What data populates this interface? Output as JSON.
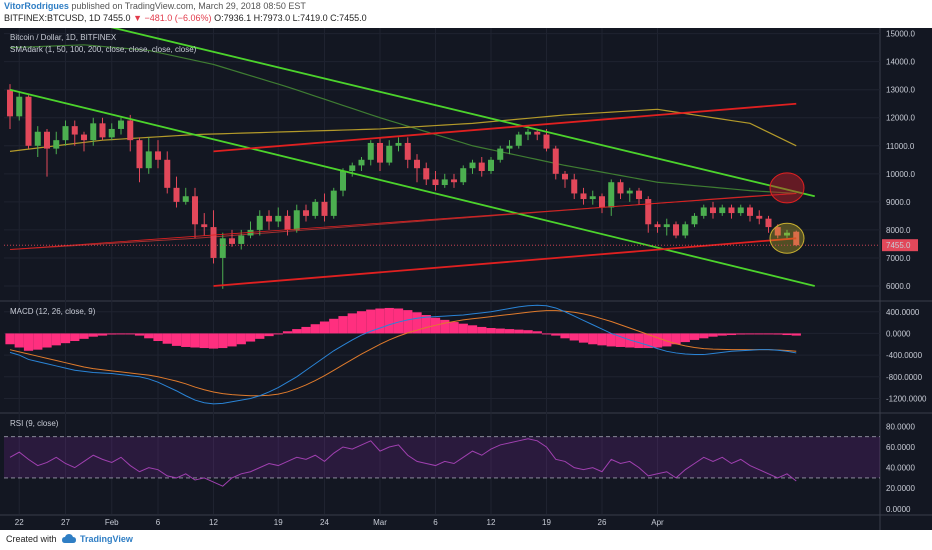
{
  "header": {
    "author": "VitorRodrigues",
    "published": "published on TradingView.com, March 29, 2018 08:50 EST",
    "symbol": "BITFINEX:BTCUSD, 1D",
    "last": "7455.0",
    "change": "▼ −481.0 (−6.06%)",
    "ohlc": "O:7936.1 H:7973.0 L:7419.0 C:7455.0"
  },
  "footer": {
    "created": "Created with",
    "brand": "TradingView"
  },
  "colors": {
    "up": "#4caf50",
    "down": "#e2485a",
    "green_line": "#4cd32c",
    "red_line": "#e02020",
    "sma50": "#3f7d32",
    "sma100": "#b39a2a",
    "sma200": "#a23030",
    "macd_hist": "#ff2f7f",
    "macd_line": "#2a84d6",
    "signal_line": "#e07b2c",
    "rsi": "#a040b0"
  },
  "chart_data": [
    {
      "type": "candlestick",
      "pane_title": "Bitcoin / Dollar, 1D, BITFINEX",
      "indicator_label": "SMAdark (1, 50, 100, 200, close, close, close, close)",
      "x_labels": [
        "22",
        "27",
        "Feb",
        "6",
        "12",
        "19",
        "24",
        "Mar",
        "6",
        "12",
        "19",
        "26",
        "Apr"
      ],
      "y_ticks": [
        6000,
        7000,
        8000,
        9000,
        10000,
        11000,
        12000,
        13000,
        14000,
        15000
      ],
      "y_tick_labels": [
        "6000.0",
        "7000.0",
        "8000.0",
        "9000.0",
        "10000.0",
        "11000.0",
        "12000.0",
        "13000.0",
        "14000.0",
        "15000.0"
      ],
      "ylim": [
        5500,
        15200
      ],
      "last_price": 7455,
      "last_price_label": "7455.0",
      "candles": [
        {
          "o": 13000,
          "h": 13200,
          "c": 12050,
          "l": 11600
        },
        {
          "o": 12050,
          "h": 12900,
          "c": 12750,
          "l": 11900
        },
        {
          "o": 12750,
          "h": 12800,
          "c": 11000,
          "l": 10900
        },
        {
          "o": 11000,
          "h": 11700,
          "c": 11500,
          "l": 10600
        },
        {
          "o": 11500,
          "h": 11600,
          "c": 10900,
          "l": 9900
        },
        {
          "o": 10900,
          "h": 11500,
          "c": 11200,
          "l": 10700
        },
        {
          "o": 11200,
          "h": 11900,
          "c": 11700,
          "l": 11000
        },
        {
          "o": 11700,
          "h": 11900,
          "c": 11400,
          "l": 11000
        },
        {
          "o": 11400,
          "h": 11500,
          "c": 11200,
          "l": 10800
        },
        {
          "o": 11200,
          "h": 12000,
          "c": 11800,
          "l": 11000
        },
        {
          "o": 11800,
          "h": 12000,
          "c": 11300,
          "l": 11200
        },
        {
          "o": 11300,
          "h": 11800,
          "c": 11600,
          "l": 11200
        },
        {
          "o": 11600,
          "h": 12000,
          "c": 11900,
          "l": 11400
        },
        {
          "o": 11900,
          "h": 12100,
          "c": 11200,
          "l": 10800
        },
        {
          "o": 11200,
          "h": 11300,
          "c": 10200,
          "l": 9700
        },
        {
          "o": 10200,
          "h": 11300,
          "c": 10800,
          "l": 10000
        },
        {
          "o": 10800,
          "h": 11200,
          "c": 10500,
          "l": 10200
        },
        {
          "o": 10500,
          "h": 10800,
          "c": 9500,
          "l": 9300
        },
        {
          "o": 9500,
          "h": 9900,
          "c": 9000,
          "l": 8800
        },
        {
          "o": 9000,
          "h": 9500,
          "c": 9200,
          "l": 8900
        },
        {
          "o": 9200,
          "h": 9500,
          "c": 8200,
          "l": 7700
        },
        {
          "o": 8200,
          "h": 8600,
          "c": 8100,
          "l": 7800
        },
        {
          "o": 8100,
          "h": 8700,
          "c": 7000,
          "l": 6800
        },
        {
          "o": 7000,
          "h": 7900,
          "c": 7700,
          "l": 5900
        },
        {
          "o": 7700,
          "h": 8000,
          "c": 7500,
          "l": 7400
        },
        {
          "o": 7500,
          "h": 8000,
          "c": 7800,
          "l": 7300
        },
        {
          "o": 7800,
          "h": 8300,
          "c": 8000,
          "l": 7700
        },
        {
          "o": 8000,
          "h": 8700,
          "c": 8500,
          "l": 7800
        },
        {
          "o": 8500,
          "h": 8700,
          "c": 8300,
          "l": 8000
        },
        {
          "o": 8300,
          "h": 8800,
          "c": 8500,
          "l": 8100
        },
        {
          "o": 8500,
          "h": 8700,
          "c": 8000,
          "l": 7800
        },
        {
          "o": 8000,
          "h": 8900,
          "c": 8700,
          "l": 7900
        },
        {
          "o": 8700,
          "h": 8900,
          "c": 8500,
          "l": 8300
        },
        {
          "o": 8500,
          "h": 9100,
          "c": 9000,
          "l": 8400
        },
        {
          "o": 9000,
          "h": 9300,
          "c": 8500,
          "l": 8300
        },
        {
          "o": 8500,
          "h": 9500,
          "c": 9400,
          "l": 8400
        },
        {
          "o": 9400,
          "h": 10200,
          "c": 10100,
          "l": 9200
        },
        {
          "o": 10100,
          "h": 10400,
          "c": 10300,
          "l": 9900
        },
        {
          "o": 10300,
          "h": 10600,
          "c": 10500,
          "l": 10100
        },
        {
          "o": 10500,
          "h": 11200,
          "c": 11100,
          "l": 10300
        },
        {
          "o": 11100,
          "h": 11300,
          "c": 10400,
          "l": 10100
        },
        {
          "o": 10400,
          "h": 11200,
          "c": 11000,
          "l": 10300
        },
        {
          "o": 11000,
          "h": 11300,
          "c": 11100,
          "l": 10800
        },
        {
          "o": 11100,
          "h": 11300,
          "c": 10500,
          "l": 10200
        },
        {
          "o": 10500,
          "h": 10700,
          "c": 10200,
          "l": 9700
        },
        {
          "o": 10200,
          "h": 10400,
          "c": 9800,
          "l": 9600
        },
        {
          "o": 9800,
          "h": 10100,
          "c": 9600,
          "l": 9400
        },
        {
          "o": 9600,
          "h": 10000,
          "c": 9800,
          "l": 9500
        },
        {
          "o": 9800,
          "h": 10000,
          "c": 9700,
          "l": 9500
        },
        {
          "o": 9700,
          "h": 10300,
          "c": 10200,
          "l": 9600
        },
        {
          "o": 10200,
          "h": 10500,
          "c": 10400,
          "l": 10000
        },
        {
          "o": 10400,
          "h": 10600,
          "c": 10100,
          "l": 9900
        },
        {
          "o": 10100,
          "h": 10600,
          "c": 10500,
          "l": 10000
        },
        {
          "o": 10500,
          "h": 11000,
          "c": 10900,
          "l": 10400
        },
        {
          "o": 10900,
          "h": 11200,
          "c": 11000,
          "l": 10700
        },
        {
          "o": 11000,
          "h": 11500,
          "c": 11400,
          "l": 10900
        },
        {
          "o": 11400,
          "h": 11600,
          "c": 11500,
          "l": 11200
        },
        {
          "o": 11500,
          "h": 11600,
          "c": 11400,
          "l": 11200
        },
        {
          "o": 11400,
          "h": 11600,
          "c": 10900,
          "l": 10800
        },
        {
          "o": 10900,
          "h": 11000,
          "c": 10000,
          "l": 9800
        },
        {
          "o": 10000,
          "h": 10100,
          "c": 9800,
          "l": 9500
        },
        {
          "o": 9800,
          "h": 10000,
          "c": 9300,
          "l": 9100
        },
        {
          "o": 9300,
          "h": 9500,
          "c": 9100,
          "l": 8900
        },
        {
          "o": 9100,
          "h": 9400,
          "c": 9200,
          "l": 8900
        },
        {
          "o": 9200,
          "h": 9300,
          "c": 8800,
          "l": 8600
        },
        {
          "o": 8800,
          "h": 9800,
          "c": 9700,
          "l": 8500
        },
        {
          "o": 9700,
          "h": 9800,
          "c": 9300,
          "l": 9100
        },
        {
          "o": 9300,
          "h": 9500,
          "c": 9400,
          "l": 9000
        },
        {
          "o": 9400,
          "h": 9500,
          "c": 9100,
          "l": 8900
        },
        {
          "o": 9100,
          "h": 9200,
          "c": 8200,
          "l": 7900
        },
        {
          "o": 8200,
          "h": 8300,
          "c": 8100,
          "l": 7900
        },
        {
          "o": 8100,
          "h": 8400,
          "c": 8200,
          "l": 7800
        },
        {
          "o": 8200,
          "h": 8300,
          "c": 7800,
          "l": 7700
        },
        {
          "o": 7800,
          "h": 8300,
          "c": 8200,
          "l": 7700
        },
        {
          "o": 8200,
          "h": 8600,
          "c": 8500,
          "l": 8100
        },
        {
          "o": 8500,
          "h": 8900,
          "c": 8800,
          "l": 8400
        },
        {
          "o": 8800,
          "h": 9000,
          "c": 8600,
          "l": 8400
        },
        {
          "o": 8600,
          "h": 8900,
          "c": 8800,
          "l": 8500
        },
        {
          "o": 8800,
          "h": 8900,
          "c": 8600,
          "l": 8400
        },
        {
          "o": 8600,
          "h": 8900,
          "c": 8800,
          "l": 8500
        },
        {
          "o": 8800,
          "h": 8900,
          "c": 8500,
          "l": 8300
        },
        {
          "o": 8500,
          "h": 8700,
          "c": 8400,
          "l": 8200
        },
        {
          "o": 8400,
          "h": 8500,
          "c": 8100,
          "l": 7900
        },
        {
          "o": 8100,
          "h": 8200,
          "c": 7800,
          "l": 7700
        },
        {
          "o": 7800,
          "h": 8000,
          "c": 7900,
          "l": 7700
        },
        {
          "o": 7936,
          "h": 7973,
          "c": 7455,
          "l": 7419
        }
      ],
      "sma50_anchors": [
        [
          0,
          14500
        ],
        [
          8,
          14600
        ],
        [
          15,
          14400
        ],
        [
          22,
          13900
        ],
        [
          30,
          13100
        ],
        [
          40,
          12000
        ],
        [
          50,
          11000
        ],
        [
          60,
          10300
        ],
        [
          70,
          9700
        ],
        [
          80,
          9400
        ],
        [
          85,
          9300
        ]
      ],
      "sma100_anchors": [
        [
          0,
          10800
        ],
        [
          10,
          11200
        ],
        [
          20,
          11400
        ],
        [
          30,
          11500
        ],
        [
          40,
          11600
        ],
        [
          50,
          11800
        ],
        [
          60,
          12100
        ],
        [
          70,
          12300
        ],
        [
          80,
          11800
        ],
        [
          85,
          11000
        ]
      ],
      "sma200_anchors": [
        [
          0,
          7300
        ],
        [
          20,
          7700
        ],
        [
          40,
          8200
        ],
        [
          60,
          8700
        ],
        [
          80,
          9200
        ],
        [
          85,
          9300
        ]
      ],
      "trendlines": [
        {
          "color": "green",
          "x1": 0,
          "y1": 13000,
          "x2": 87,
          "y2": 6000
        },
        {
          "color": "green",
          "x1": 10,
          "y1": 15300,
          "x2": 87,
          "y2": 9200
        },
        {
          "color": "red",
          "x1": 22,
          "y1": 10800,
          "x2": 85,
          "y2": 12500
        },
        {
          "color": "red",
          "x1": 22,
          "y1": 6000,
          "x2": 85,
          "y2": 7700
        },
        {
          "color": "red_thin",
          "x1": 0,
          "y1": 7300,
          "x2": 85,
          "y2": 9300
        }
      ],
      "circles": [
        {
          "x": 84,
          "y": 9500,
          "color": "red"
        },
        {
          "x": 84,
          "y": 7700,
          "color": "yellow"
        }
      ]
    },
    {
      "type": "macd",
      "pane_title": "MACD (12, 26, close, 9)",
      "y_tick_labels": [
        "400.0000",
        "0.0000",
        "-400.0000",
        "-800.0000",
        "-1200.0000"
      ],
      "y_ticks": [
        400,
        0,
        -400,
        -800,
        -1200
      ],
      "ylim": [
        -1450,
        580
      ],
      "histogram": [
        -200,
        -260,
        -320,
        -300,
        -260,
        -220,
        -180,
        -140,
        -100,
        -60,
        -40,
        -20,
        0,
        -10,
        -40,
        -90,
        -140,
        -190,
        -230,
        -250,
        -260,
        -270,
        -280,
        -270,
        -240,
        -200,
        -150,
        -100,
        -50,
        0,
        40,
        80,
        120,
        170,
        220,
        270,
        320,
        370,
        410,
        440,
        460,
        470,
        460,
        430,
        390,
        340,
        290,
        250,
        210,
        180,
        150,
        120,
        100,
        90,
        80,
        70,
        60,
        40,
        0,
        -40,
        -90,
        -130,
        -170,
        -200,
        -220,
        -240,
        -250,
        -260,
        -270,
        -270,
        -260,
        -240,
        -200,
        -160,
        -120,
        -90,
        -60,
        -40,
        -30,
        -20,
        -15,
        -10,
        -10,
        -20,
        -30,
        -40
      ],
      "macd_line": [
        -350,
        -400,
        -480,
        -520,
        -560,
        -600,
        -640,
        -680,
        -700,
        -720,
        -730,
        -740,
        -760,
        -780,
        -800,
        -840,
        -900,
        -980,
        -1060,
        -1150,
        -1230,
        -1280,
        -1300,
        -1290,
        -1260,
        -1230,
        -1200,
        -1150,
        -1080,
        -1000,
        -900,
        -800,
        -680,
        -560,
        -440,
        -320,
        -220,
        -120,
        -30,
        40,
        100,
        160,
        210,
        250,
        280,
        300,
        310,
        320,
        330,
        340,
        360,
        380,
        400,
        430,
        460,
        490,
        510,
        520,
        510,
        470,
        400,
        320,
        240,
        160,
        80,
        0,
        -60,
        -120,
        -170,
        -220,
        -280,
        -330,
        -360,
        -380,
        -390,
        -390,
        -370,
        -350,
        -330,
        -320,
        -310,
        -300,
        -300,
        -310,
        -330,
        -360
      ],
      "signal_line": [
        -300,
        -340,
        -380,
        -420,
        -460,
        -500,
        -540,
        -580,
        -620,
        -650,
        -670,
        -690,
        -710,
        -730,
        -750,
        -770,
        -800,
        -840,
        -880,
        -930,
        -990,
        -1040,
        -1080,
        -1110,
        -1130,
        -1140,
        -1150,
        -1150,
        -1140,
        -1120,
        -1080,
        -1020,
        -950,
        -870,
        -780,
        -680,
        -580,
        -480,
        -380,
        -290,
        -200,
        -120,
        -50,
        10,
        60,
        110,
        150,
        190,
        220,
        250,
        270,
        290,
        310,
        330,
        350,
        370,
        390,
        410,
        420,
        420,
        410,
        390,
        360,
        320,
        270,
        220,
        160,
        100,
        40,
        -20,
        -80,
        -140,
        -190,
        -230,
        -260,
        -280,
        -290,
        -295,
        -300,
        -300,
        -300,
        -300,
        -300,
        -305,
        -315,
        -330
      ]
    },
    {
      "type": "line",
      "pane_title": "RSI (9, close)",
      "y_tick_labels": [
        "80.0000",
        "60.0000",
        "40.0000",
        "20.0000",
        "0.0000"
      ],
      "y_ticks": [
        80,
        60,
        40,
        20,
        0
      ],
      "ylim": [
        -5,
        92
      ],
      "bands": [
        30,
        70
      ],
      "values": [
        50,
        55,
        48,
        42,
        45,
        50,
        44,
        40,
        46,
        52,
        48,
        45,
        50,
        42,
        36,
        40,
        38,
        32,
        30,
        34,
        28,
        30,
        26,
        22,
        30,
        34,
        36,
        40,
        44,
        42,
        46,
        50,
        48,
        52,
        46,
        54,
        60,
        58,
        62,
        66,
        56,
        60,
        62,
        52,
        46,
        44,
        42,
        46,
        44,
        50,
        56,
        52,
        58,
        62,
        64,
        66,
        68,
        66,
        60,
        48,
        46,
        40,
        38,
        40,
        36,
        48,
        44,
        46,
        40,
        32,
        34,
        36,
        30,
        38,
        44,
        50,
        46,
        50,
        44,
        48,
        42,
        38,
        34,
        30,
        34,
        27
      ]
    }
  ]
}
